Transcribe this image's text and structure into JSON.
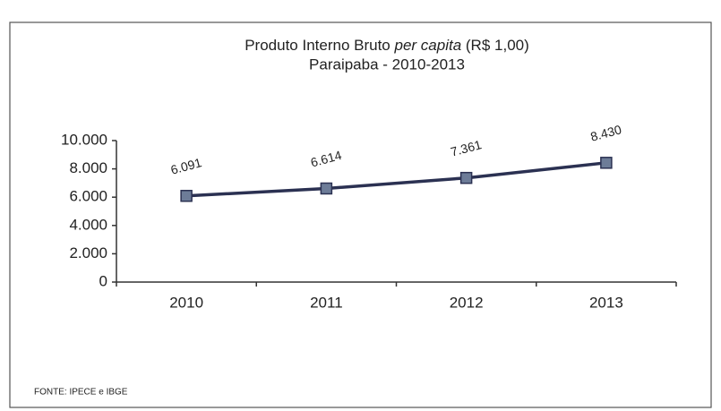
{
  "chart_data": {
    "type": "line",
    "title": [
      "Produto Interno Bruto ",
      "per capita",
      " (R$ 1,00)"
    ],
    "subtitle": "Paraipaba - 2010-2013",
    "categories": [
      "2010",
      "2011",
      "2012",
      "2013"
    ],
    "values": [
      6091,
      6614,
      7361,
      8430
    ],
    "value_labels": [
      "6.091",
      "6.614",
      "7.361",
      "8.430"
    ],
    "color": "#2b3152",
    "marker_color": "#6d7c98",
    "ylim": [
      0,
      10000
    ],
    "yticks": [
      0,
      {
        "value": 2000,
        "label": "2.000"
      },
      {
        "value": 4000,
        "label": "4.000"
      },
      {
        "value": 6000,
        "label": "6.000"
      },
      {
        "value": 8000,
        "label": "8.000"
      },
      {
        "value": 10000,
        "label": "10.000"
      }
    ],
    "grid": false,
    "source": "FONTE: IPECE e IBGE"
  }
}
